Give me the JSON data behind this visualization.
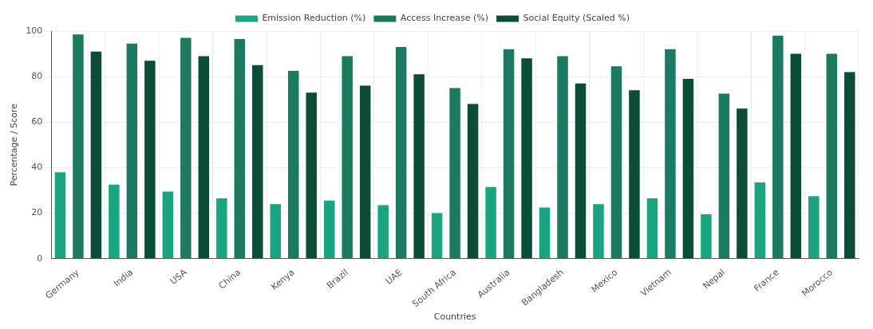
{
  "chart_data": {
    "type": "bar",
    "xlabel": "Countries",
    "ylabel": "Percentage / Score",
    "categories": [
      "Germany",
      "India",
      "USA",
      "China",
      "Kenya",
      "Brazil",
      "UAE",
      "South Africa",
      "Australia",
      "Bangladesh",
      "Mexico",
      "Vietnam",
      "Nepal",
      "France",
      "Morocco"
    ],
    "series": [
      {
        "name": "Emission Reduction (%)",
        "color": "#19a57f",
        "values": [
          38,
          32.5,
          29.5,
          26.5,
          24,
          25.5,
          23.5,
          20,
          31.5,
          22.5,
          24,
          26.5,
          19.5,
          33.5,
          27.5
        ]
      },
      {
        "name": "Access Increase (%)",
        "color": "#1b7a5f",
        "values": [
          98.5,
          94.5,
          97,
          96.5,
          82.5,
          89,
          93,
          75,
          92,
          89,
          84.5,
          92,
          72.5,
          98,
          90
        ]
      },
      {
        "name": "Social Equity (Scaled %)",
        "color": "#0b4d37",
        "values": [
          91,
          87,
          89,
          85,
          73,
          76,
          81,
          68,
          88,
          77,
          74,
          79,
          66,
          90,
          82
        ]
      }
    ],
    "ylim": [
      0,
      100
    ],
    "yticks": [
      0,
      20,
      40,
      60,
      80,
      100
    ],
    "grid": true,
    "legend": "top"
  }
}
